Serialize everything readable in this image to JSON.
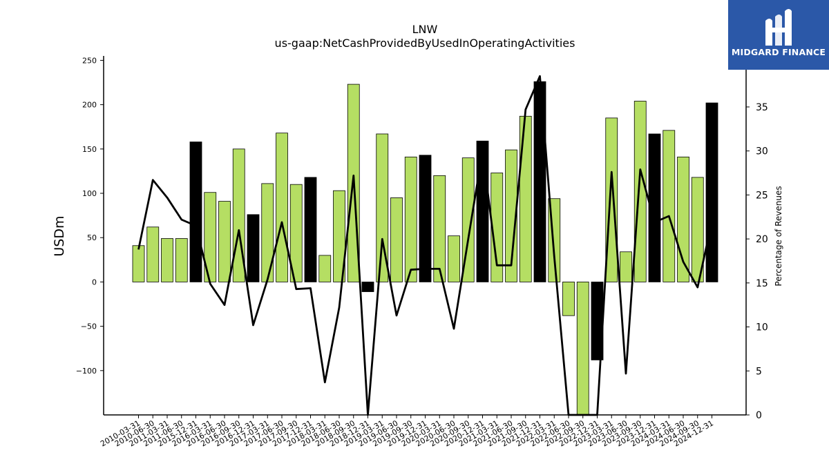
{
  "chart_data": {
    "type": "bar",
    "title": "LNW",
    "subtitle": "us-gaap:NetCashProvidedByUsedInOperatingActivities",
    "ylabel": "USDm",
    "y2label": "Percentage of Revenues",
    "ylim": [
      -150,
      255
    ],
    "y2lim": [
      0,
      40.8
    ],
    "yticks": [
      -100,
      -50,
      0,
      50,
      100,
      150,
      200,
      250
    ],
    "y2ticks": [
      0,
      5,
      10,
      15,
      20,
      25,
      30,
      35,
      40
    ],
    "categories": [
      "2010-03-31",
      "2010-06-30",
      "2011-03-31",
      "2011-06-30",
      "2015-12-31",
      "2016-03-31",
      "2016-06-30",
      "2016-09-30",
      "2016-12-31",
      "2017-03-31",
      "2017-06-30",
      "2017-09-30",
      "2017-12-31",
      "2018-03-31",
      "2018-06-30",
      "2018-09-30",
      "2018-12-31",
      "2019-03-31",
      "2019-06-30",
      "2019-09-30",
      "2019-12-31",
      "2020-03-31",
      "2020-06-30",
      "2020-09-30",
      "2020-12-31",
      "2021-03-31",
      "2021-06-30",
      "2021-09-30",
      "2021-12-31",
      "2022-03-31",
      "2022-06-30",
      "2022-09-30",
      "2022-12-31",
      "2023-03-31",
      "2023-06-30",
      "2023-09-30",
      "2023-12-31",
      "2024-03-31",
      "2024-06-30",
      "2024-09-30",
      "2024-12-31"
    ],
    "series": [
      {
        "type": "bar",
        "values": [
          41,
          62,
          49,
          49,
          158,
          101,
          91,
          150,
          76,
          111,
          168,
          110,
          118,
          30,
          103,
          223,
          -11,
          167,
          95,
          141,
          143,
          120,
          52,
          140,
          159,
          123,
          149,
          187,
          226,
          94,
          -38,
          -150,
          -88,
          185,
          34,
          204,
          167,
          171,
          141,
          118,
          202
        ],
        "highlight": [
          false,
          false,
          false,
          false,
          true,
          false,
          false,
          false,
          true,
          false,
          false,
          false,
          true,
          false,
          false,
          false,
          true,
          false,
          false,
          false,
          true,
          false,
          false,
          false,
          true,
          false,
          false,
          false,
          true,
          false,
          false,
          false,
          true,
          false,
          false,
          false,
          true,
          false,
          false,
          false,
          true
        ]
      },
      {
        "type": "line",
        "axis": "right",
        "values": [
          18.8,
          26.7,
          24.7,
          22.2,
          21.5,
          14.9,
          12.5,
          21.0,
          10.2,
          15.4,
          21.9,
          14.3,
          14.4,
          3.7,
          12.2,
          27.2,
          0,
          20.0,
          11.3,
          16.5,
          16.6,
          16.6,
          9.8,
          20.0,
          30.0,
          17.0,
          17.0,
          34.7,
          38.5,
          18.0,
          0,
          0,
          0,
          27.6,
          4.7,
          27.9,
          21.9,
          22.6,
          17.4,
          14.5,
          22.0
        ]
      }
    ],
    "colors": {
      "bar": "#b5de63",
      "bar_highlight": "#000000",
      "line": "#000000",
      "bar_edge": "#000000"
    },
    "grid": false,
    "legend": "none"
  },
  "logo": {
    "text": "MIDGARD FINANCE",
    "background": "#2b58a8"
  }
}
